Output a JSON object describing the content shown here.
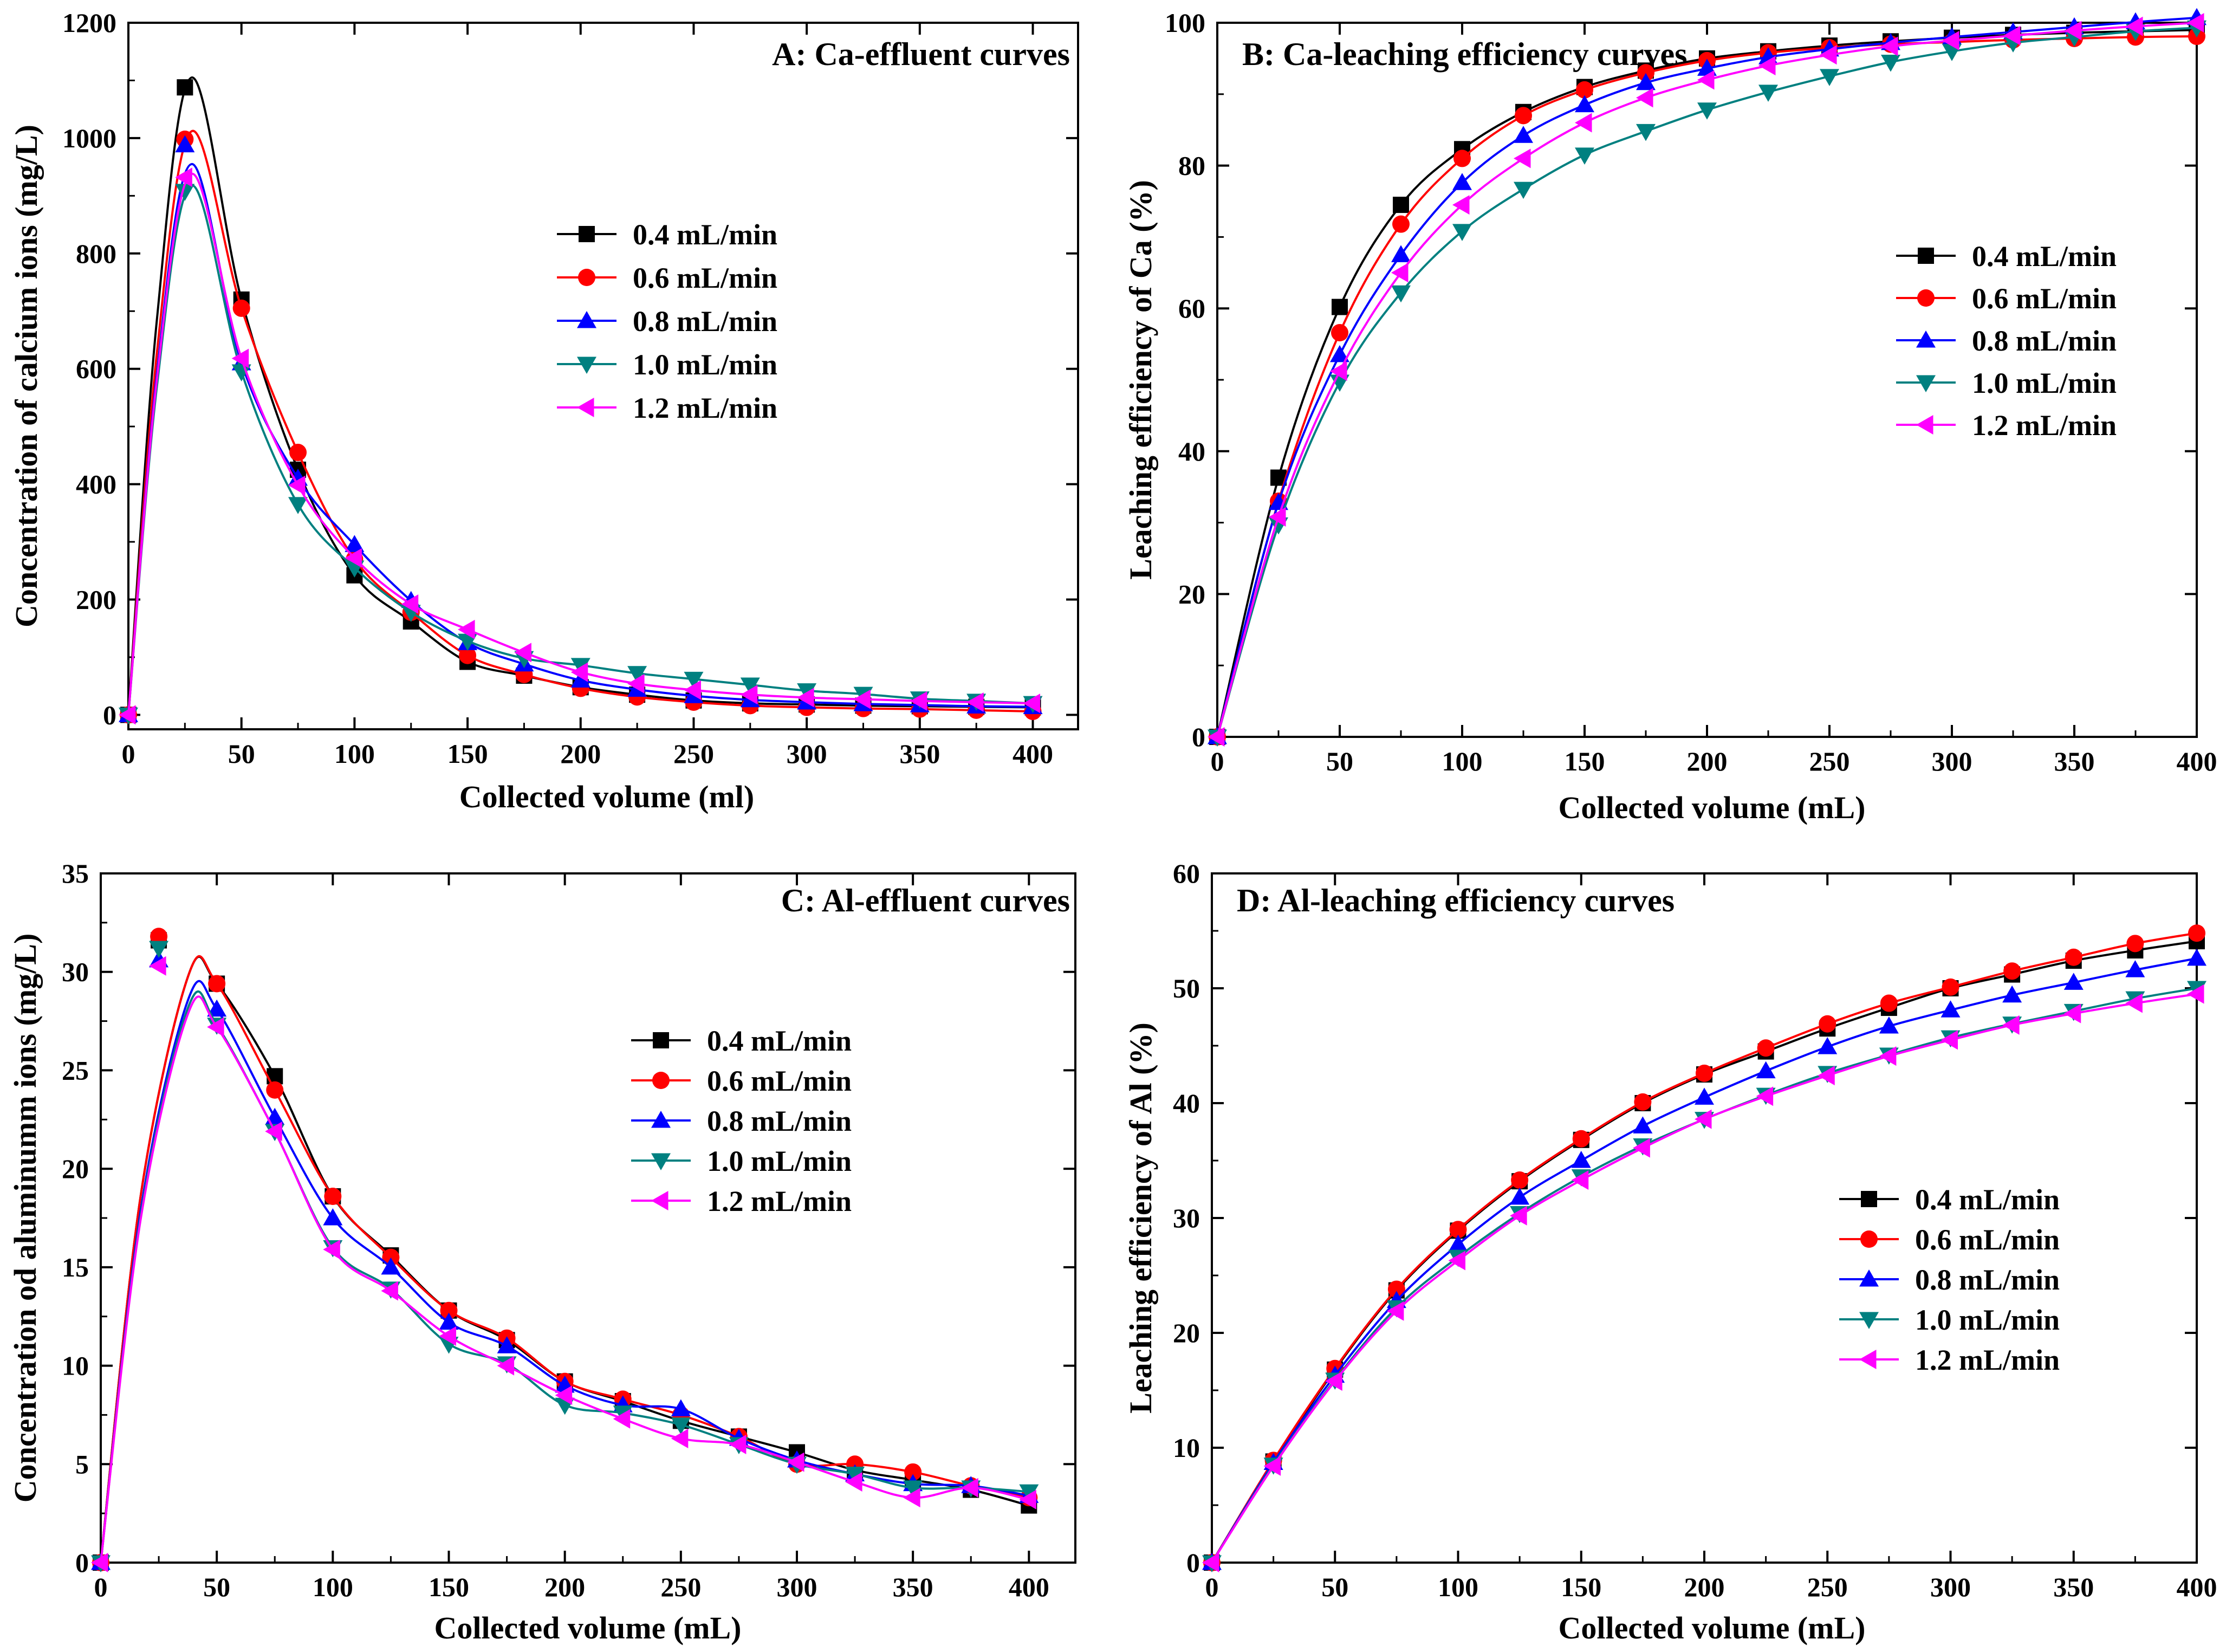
{
  "colors": {
    "s04": "#000000",
    "s06": "#ff0000",
    "s08": "#0000ff",
    "s10": "#008080",
    "s12": "#ff00ff"
  },
  "chart_data": [
    {
      "id": "A",
      "type": "line",
      "title": "A: Ca-effluent curves",
      "xlabel": "Collected volume (ml)",
      "ylabel": "Concentration of calcium ions (mg/L)",
      "xlim": [
        0,
        420
      ],
      "ylim": [
        -25,
        1200
      ],
      "xticks": [
        "0",
        "50",
        "100",
        "150",
        "200",
        "250",
        "300",
        "350",
        "400"
      ],
      "yticks": [
        "0",
        "200",
        "400",
        "600",
        "800",
        "1000",
        "1200"
      ],
      "legend": "middle-right",
      "x": [
        0,
        25,
        50,
        75,
        100,
        125,
        150,
        175,
        200,
        225,
        250,
        275,
        300,
        325,
        350,
        375,
        400
      ],
      "series": [
        {
          "name": "0.4 mL/min",
          "marker": "square",
          "values": [
            0,
            1088,
            720,
            425,
            242,
            162,
            92,
            68,
            48,
            35,
            25,
            20,
            18,
            16,
            15,
            14,
            13
          ]
        },
        {
          "name": "0.6 mL/min",
          "marker": "circle",
          "values": [
            0,
            998,
            705,
            455,
            270,
            178,
            103,
            70,
            46,
            31,
            22,
            16,
            13,
            11,
            10,
            8,
            6
          ]
        },
        {
          "name": "0.8 mL/min",
          "marker": "triangle-up",
          "values": [
            0,
            988,
            610,
            410,
            295,
            198,
            125,
            88,
            60,
            44,
            33,
            26,
            22,
            19,
            17,
            15,
            14
          ]
        },
        {
          "name": "1.0 mL/min",
          "marker": "triangle-down",
          "values": [
            0,
            908,
            595,
            365,
            255,
            178,
            128,
            98,
            86,
            72,
            62,
            52,
            42,
            36,
            28,
            24,
            20
          ]
        },
        {
          "name": "1.2 mL/min",
          "marker": "triangle-left",
          "values": [
            0,
            932,
            618,
            398,
            272,
            192,
            148,
            108,
            74,
            54,
            43,
            35,
            30,
            27,
            24,
            22,
            20
          ]
        }
      ],
      "fitted_peaks": [
        1105,
        1012,
        955,
        918,
        938
      ]
    },
    {
      "id": "B",
      "type": "line",
      "title": "B: Ca-leaching efficiency curves",
      "xlabel": "Collected volume (mL)",
      "ylabel": "Leaching efficiency of Ca (%)",
      "xlim": [
        0,
        400
      ],
      "ylim": [
        0,
        100
      ],
      "xticks": [
        "0",
        "50",
        "100",
        "150",
        "200",
        "250",
        "300",
        "350",
        "400"
      ],
      "yticks": [
        "0",
        "20",
        "40",
        "60",
        "80",
        "100"
      ],
      "legend": "middle-right",
      "x": [
        0,
        25,
        50,
        75,
        100,
        125,
        150,
        175,
        200,
        225,
        250,
        275,
        300,
        325,
        350,
        375,
        400
      ],
      "series": [
        {
          "name": "0.4 mL/min",
          "marker": "square",
          "values": [
            0,
            36.3,
            60.2,
            74.5,
            82.3,
            87.5,
            91.0,
            93.3,
            95.0,
            96.0,
            96.8,
            97.4,
            97.9,
            98.3,
            98.6,
            98.8,
            99.0
          ]
        },
        {
          "name": "0.6 mL/min",
          "marker": "circle",
          "values": [
            0,
            33.0,
            56.6,
            71.8,
            81.0,
            87.0,
            90.6,
            93.0,
            94.7,
            95.8,
            96.5,
            97.0,
            97.3,
            97.6,
            97.8,
            98.0,
            98.1
          ]
        },
        {
          "name": "0.8 mL/min",
          "marker": "triangle-up",
          "values": [
            0,
            32.8,
            53.5,
            67.5,
            77.6,
            84.2,
            88.5,
            91.6,
            93.6,
            95.2,
            96.3,
            97.2,
            98.0,
            98.7,
            99.4,
            100.1,
            100.7
          ]
        },
        {
          "name": "1.0 mL/min",
          "marker": "triangle-down",
          "values": [
            0,
            29.7,
            49.7,
            62.2,
            70.8,
            76.7,
            81.5,
            84.8,
            87.8,
            90.3,
            92.5,
            94.5,
            96.0,
            97.2,
            98.0,
            98.8,
            99.3
          ]
        },
        {
          "name": "1.2 mL/min",
          "marker": "triangle-left",
          "values": [
            0,
            30.8,
            51.2,
            65.0,
            74.5,
            81.0,
            86.0,
            89.5,
            92.0,
            94.0,
            95.5,
            96.7,
            97.5,
            98.2,
            98.9,
            99.5,
            100.0
          ]
        }
      ]
    },
    {
      "id": "C",
      "type": "line",
      "title": "C: Al-effluent curves",
      "xlabel": "Collected volume (mL)",
      "ylabel": "Concentration od aluminumm ions (mg/L)",
      "xlim": [
        0,
        420
      ],
      "ylim": [
        0,
        35
      ],
      "xticks": [
        "0",
        "50",
        "100",
        "150",
        "200",
        "250",
        "300",
        "350",
        "400"
      ],
      "yticks": [
        "0",
        "5",
        "10",
        "15",
        "20",
        "25",
        "30",
        "35"
      ],
      "legend": "middle-right",
      "x": [
        0,
        25,
        50,
        75,
        100,
        125,
        150,
        175,
        200,
        225,
        250,
        275,
        300,
        325,
        350,
        375,
        400
      ],
      "series": [
        {
          "name": "0.4 mL/min",
          "marker": "square",
          "values": [
            0,
            31.6,
            29.4,
            24.7,
            18.6,
            15.6,
            12.8,
            11.3,
            9.2,
            8.2,
            7.2,
            6.4,
            5.6,
            4.7,
            4.2,
            3.7,
            2.9
          ]
        },
        {
          "name": "0.6 mL/min",
          "marker": "circle",
          "values": [
            0,
            31.8,
            29.4,
            24.0,
            18.6,
            15.5,
            12.8,
            11.4,
            9.2,
            8.3,
            7.5,
            6.4,
            5.0,
            5.0,
            4.6,
            3.9,
            3.3
          ]
        },
        {
          "name": "0.8 mL/min",
          "marker": "triangle-up",
          "values": [
            0,
            30.6,
            28.1,
            22.6,
            17.5,
            15.0,
            12.2,
            11.0,
            9.0,
            8.0,
            7.8,
            6.3,
            5.2,
            4.5,
            4.0,
            3.9,
            3.4
          ]
        },
        {
          "name": "1.0 mL/min",
          "marker": "triangle-down",
          "values": [
            0,
            31.2,
            27.3,
            21.9,
            16.0,
            13.9,
            11.1,
            10.1,
            8.0,
            7.6,
            7.0,
            6.0,
            5.0,
            4.5,
            3.8,
            3.8,
            3.6
          ]
        },
        {
          "name": "1.2 mL/min",
          "marker": "triangle-left",
          "values": [
            0,
            30.3,
            27.2,
            21.9,
            15.9,
            13.8,
            11.5,
            10.0,
            8.5,
            7.3,
            6.3,
            6.0,
            5.1,
            4.1,
            3.3,
            3.8,
            3.2
          ]
        }
      ],
      "fitted_peaks": [
        29.9,
        29.9,
        28.7,
        28.3,
        28.0
      ]
    },
    {
      "id": "D",
      "type": "line",
      "title": "D: Al-leaching efficiency curves",
      "xlabel": "Collected volume (mL)",
      "ylabel": "Leaching efficiency of Al (%)",
      "xlim": [
        0,
        400
      ],
      "ylim": [
        0,
        60
      ],
      "xticks": [
        "0",
        "50",
        "100",
        "150",
        "200",
        "250",
        "300",
        "350",
        "400"
      ],
      "yticks": [
        "0",
        "10",
        "20",
        "30",
        "40",
        "50",
        "60"
      ],
      "legend": "lower-right",
      "x": [
        0,
        25,
        50,
        75,
        100,
        125,
        150,
        175,
        200,
        225,
        250,
        275,
        300,
        325,
        350,
        375,
        400
      ],
      "series": [
        {
          "name": "0.4 mL/min",
          "marker": "square",
          "values": [
            0,
            8.8,
            16.8,
            23.7,
            28.9,
            33.2,
            36.8,
            40.0,
            42.5,
            44.5,
            46.5,
            48.3,
            50.0,
            51.2,
            52.4,
            53.3,
            54.1
          ]
        },
        {
          "name": "0.6 mL/min",
          "marker": "circle",
          "values": [
            0,
            8.9,
            16.9,
            23.8,
            29.0,
            33.3,
            36.9,
            40.1,
            42.6,
            44.8,
            46.9,
            48.7,
            50.1,
            51.5,
            52.7,
            53.9,
            54.8
          ]
        },
        {
          "name": "0.8 mL/min",
          "marker": "triangle-up",
          "values": [
            0,
            8.7,
            16.3,
            22.8,
            27.7,
            31.8,
            35.0,
            38.0,
            40.5,
            42.8,
            44.9,
            46.7,
            48.1,
            49.4,
            50.5,
            51.6,
            52.6
          ]
        },
        {
          "name": "1.0 mL/min",
          "marker": "triangle-down",
          "values": [
            0,
            8.5,
            15.9,
            22.2,
            26.6,
            30.4,
            33.6,
            36.3,
            38.6,
            40.7,
            42.6,
            44.2,
            45.7,
            46.9,
            48.0,
            49.1,
            50.0
          ]
        },
        {
          "name": "1.2 mL/min",
          "marker": "triangle-left",
          "values": [
            0,
            8.4,
            15.8,
            21.9,
            26.3,
            30.2,
            33.3,
            36.1,
            38.6,
            40.6,
            42.4,
            44.1,
            45.5,
            46.8,
            47.8,
            48.7,
            49.5
          ]
        }
      ]
    }
  ]
}
